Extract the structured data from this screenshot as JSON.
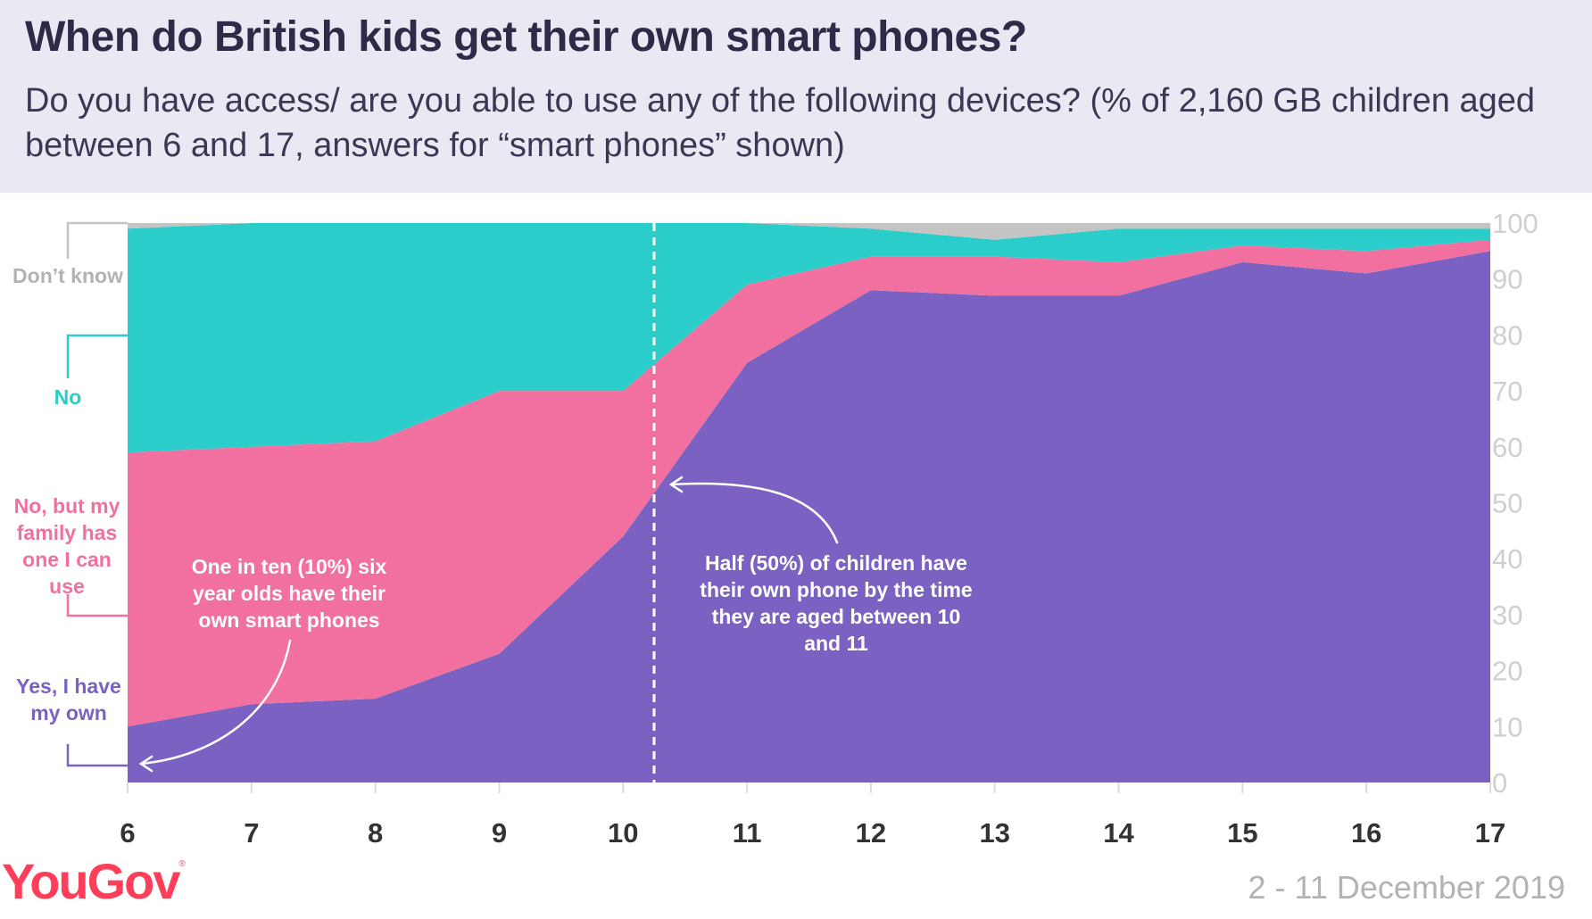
{
  "title": "When do British kids get their own smart phones?",
  "subtitle": "Do you have access/ are you able to use any of the following devices? (% of 2,160 GB children aged between 6 and 17, answers for “smart phones” shown)",
  "chart_data": {
    "type": "area",
    "stacked": true,
    "x": [
      6,
      7,
      8,
      9,
      10,
      11,
      12,
      13,
      14,
      15,
      16,
      17
    ],
    "series": [
      {
        "name": "Yes, I have my own",
        "color": "#7b62c2",
        "values": [
          10,
          14,
          15,
          23,
          44,
          75,
          88,
          87,
          87,
          93,
          91,
          95
        ]
      },
      {
        "name": "No, but my family has one I can use",
        "color": "#f2709f",
        "values": [
          49,
          46,
          46,
          47,
          26,
          14,
          6,
          7,
          6,
          3,
          4,
          2
        ]
      },
      {
        "name": "No",
        "color": "#2acdca",
        "values": [
          40,
          40,
          39,
          30,
          30,
          11,
          5,
          3,
          6,
          3,
          4,
          2
        ]
      },
      {
        "name": "Don’t know",
        "color": "#c4c4c4",
        "values": [
          1,
          0,
          0,
          0,
          0,
          0,
          1,
          3,
          1,
          1,
          1,
          1
        ]
      }
    ],
    "xlim": [
      6,
      17
    ],
    "ylim": [
      0,
      100
    ],
    "y_ticks": [
      0,
      10,
      20,
      30,
      40,
      50,
      60,
      70,
      80,
      90,
      100
    ],
    "reference_line": {
      "x": 10.25,
      "style": "dashed"
    },
    "annotations": [
      {
        "text": "One in ten (10%) six year olds have their own smart phones",
        "points_to": {
          "x": 6,
          "y": 5
        }
      },
      {
        "text": "Half (50%) of children have their own phone by the time they are aged between 10 and 11",
        "points_to": {
          "x": 10.3,
          "y": 53
        }
      }
    ],
    "legend_position": "left",
    "xlabel": "",
    "ylabel": ""
  },
  "legend": {
    "dont_know": "Don’t know",
    "no": "No",
    "no_but_family": "No, but my family has one I can use",
    "yes_own": "Yes, I have my own"
  },
  "annotations": {
    "ten_percent": "One in ten (10%) six year olds have their own smart phones",
    "half": "Half (50%) of children have their own phone by the time they are aged between 10 and 11"
  },
  "footer": {
    "logo": "YouGov",
    "date": "2 - 11 December 2019"
  },
  "colors": {
    "header_bg": "#ebe8f3",
    "title": "#2e2a48",
    "own": "#7b62c2",
    "family": "#f2709f",
    "no": "#2acdca",
    "dont_know": "#c4c4c4",
    "logo": "#ff3f5a"
  }
}
